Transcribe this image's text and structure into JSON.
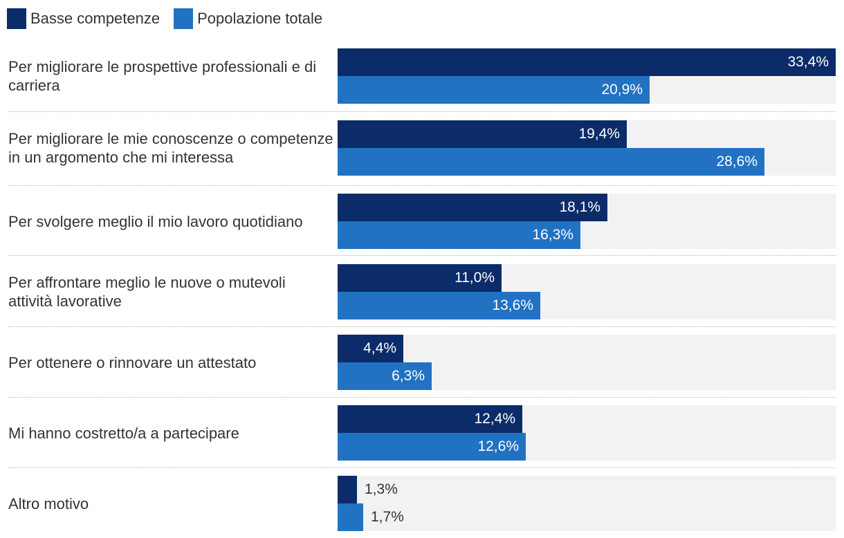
{
  "colors": {
    "basse": "#0b2c68",
    "totale": "#2272c3",
    "track": "#f2f2f2"
  },
  "legend": {
    "series_1": "Basse competenze",
    "series_2": "Popolazione totale"
  },
  "chart_data": {
    "type": "bar",
    "orientation": "horizontal",
    "title": "",
    "xlabel": "",
    "ylabel": "",
    "xlim": [
      0,
      33.4
    ],
    "grid": false,
    "legend_position": "top-left",
    "categories": [
      "Per migliorare le prospettive professionali e di carriera",
      "Per migliorare le mie conoscenze o competenze in un argomento che mi interessa",
      "Per svolgere meglio il mio lavoro quotidiano",
      "Per affrontare meglio le nuove o mutevoli attività lavorative",
      "Per ottenere o rinnovare un attestato",
      "Mi hanno costretto/a a partecipare",
      "Altro motivo"
    ],
    "series": [
      {
        "name": "Basse competenze",
        "values": [
          33.4,
          19.4,
          18.1,
          11.0,
          4.4,
          12.4,
          1.3
        ],
        "labels": [
          "33,4%",
          "19,4%",
          "18,1%",
          "11,0%",
          "4,4%",
          "12,4%",
          "1,3%"
        ]
      },
      {
        "name": "Popolazione totale",
        "values": [
          20.9,
          28.6,
          16.3,
          13.6,
          6.3,
          12.6,
          1.7
        ],
        "labels": [
          "20,9%",
          "28,6%",
          "16,3%",
          "13,6%",
          "6,3%",
          "12,6%",
          "1,7%"
        ]
      }
    ]
  }
}
